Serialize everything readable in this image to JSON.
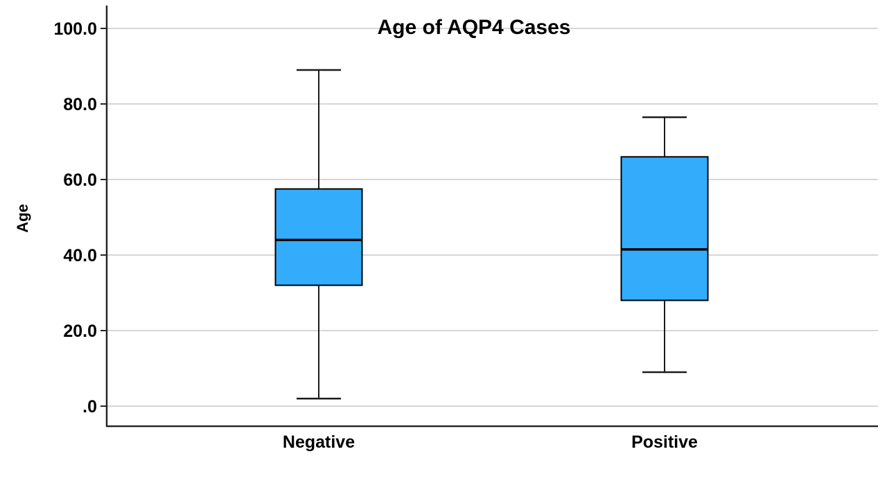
{
  "figure": {
    "background": "#FFFFFF"
  },
  "chart_data": {
    "type": "boxplot",
    "title": "Age of AQP4 Cases",
    "ylabel": "Age",
    "xlabel": "",
    "ylim": [
      0,
      100
    ],
    "grid": true,
    "legend": false,
    "yticks": [
      {
        "value": 100,
        "label": "100.0"
      },
      {
        "value": 80,
        "label": "80.0"
      },
      {
        "value": 60,
        "label": "60.0"
      },
      {
        "value": 40,
        "label": "40.0"
      },
      {
        "value": 20,
        "label": "20.0"
      },
      {
        "value": 0,
        "label": ".0"
      }
    ],
    "categories": [
      "Negative",
      "Positive"
    ],
    "series": [
      {
        "name": "Negative",
        "whisker_low": 2,
        "q1": 32,
        "median": 44,
        "q3": 57.5,
        "whisker_high": 89,
        "outliers": []
      },
      {
        "name": "Positive",
        "whisker_low": 9,
        "q1": 28,
        "median": 41.5,
        "q3": 66,
        "whisker_high": 76.5,
        "outliers": []
      }
    ],
    "colors": {
      "box_fill": "#33ADFB",
      "box_border": "#000000",
      "median": "#000000",
      "whisker": "#1A1A1A",
      "gridline": "#C9C9C9",
      "axis": "#262626",
      "text": "#000000"
    }
  }
}
